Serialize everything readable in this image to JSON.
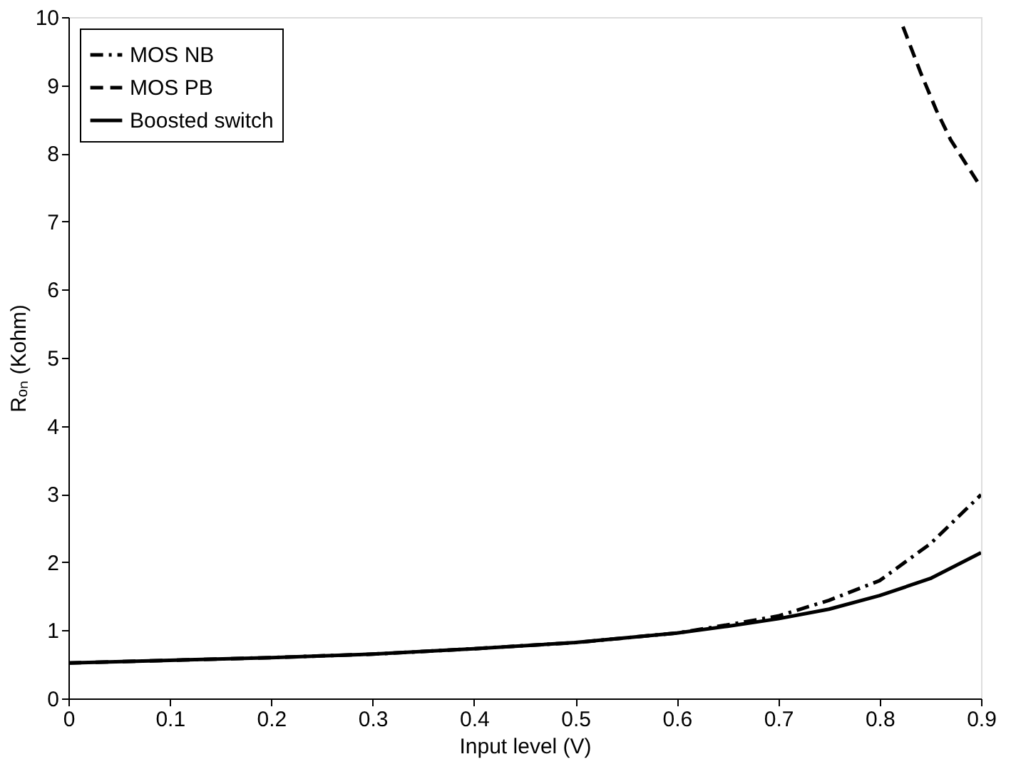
{
  "chart_data": {
    "type": "line",
    "xlabel": "Input level (V)",
    "ylabel": "Rₒₙ (Kohm)",
    "xlim": [
      0,
      0.9
    ],
    "xticks": [
      0,
      0.1,
      0.2,
      0.3,
      0.4,
      0.5,
      0.6,
      0.7,
      0.8,
      0.9
    ],
    "ylim": [
      0,
      10
    ],
    "yticks": [
      0,
      1,
      2,
      3,
      4,
      5,
      6,
      7,
      8,
      9,
      10
    ],
    "grid": false,
    "legend": "top left",
    "series": [
      {
        "name": "MOS NB",
        "color": "#000000",
        "line_style": "dashdot",
        "x": [
          0,
          0.1,
          0.2,
          0.3,
          0.4,
          0.5,
          0.6,
          0.65,
          0.7,
          0.75,
          0.8,
          0.85,
          0.9
        ],
        "values": [
          0.52,
          0.56,
          0.6,
          0.65,
          0.73,
          0.82,
          0.96,
          1.08,
          1.21,
          1.44,
          1.73,
          2.27,
          2.99
        ]
      },
      {
        "name": "MOS PB",
        "color": "#000000",
        "line_style": "dashed",
        "x": [
          0.823,
          0.84,
          0.856,
          0.87,
          0.885,
          0.9
        ],
        "values": [
          9.86,
          9.2,
          8.63,
          8.2,
          7.85,
          7.5
        ]
      },
      {
        "name": "Boosted switch",
        "color": "#000000",
        "line_style": "solid",
        "x": [
          0,
          0.1,
          0.2,
          0.3,
          0.4,
          0.5,
          0.6,
          0.65,
          0.7,
          0.75,
          0.8,
          0.85,
          0.9
        ],
        "values": [
          0.52,
          0.56,
          0.6,
          0.65,
          0.73,
          0.82,
          0.96,
          1.06,
          1.17,
          1.31,
          1.51,
          1.76,
          2.14
        ]
      }
    ]
  }
}
